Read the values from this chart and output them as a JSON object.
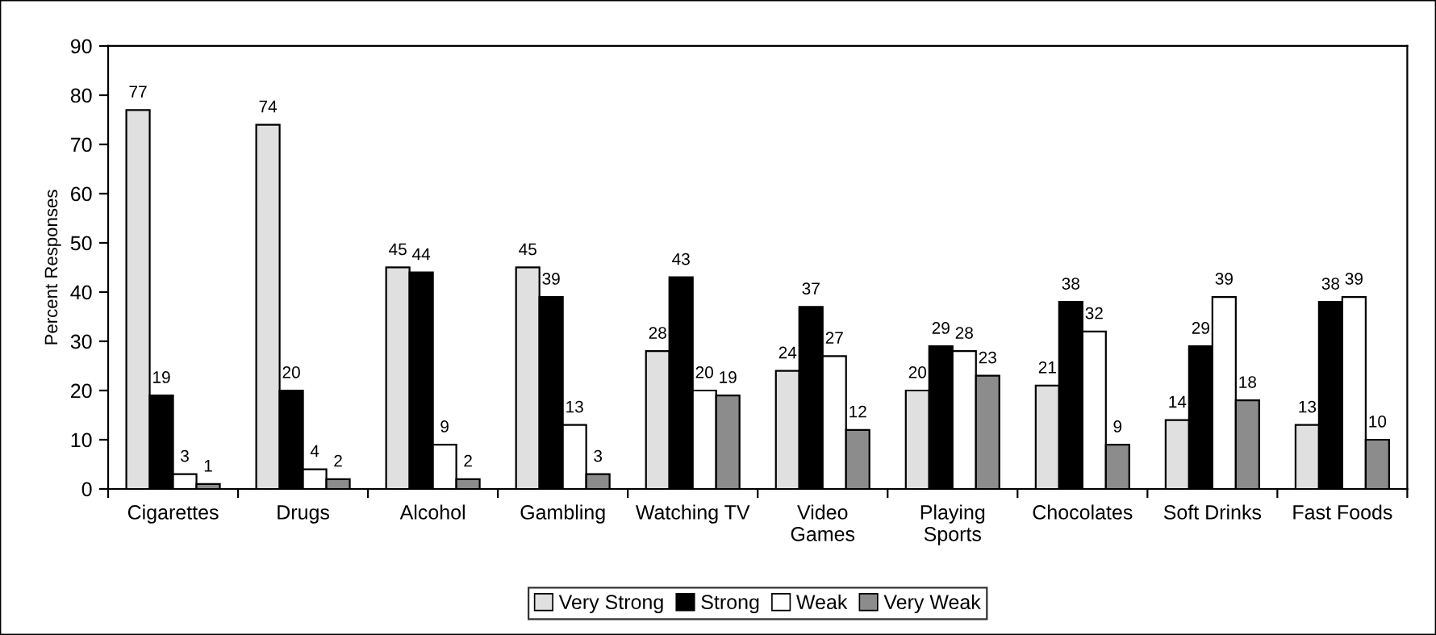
{
  "chart_data": {
    "type": "bar",
    "ylabel": "Percent Responses",
    "categories": [
      "Cigarettes",
      "Drugs",
      "Alcohol",
      "Gambling",
      "Watching TV",
      "Video\nGames",
      "Playing\nSports",
      "Chocolates",
      "Soft Drinks",
      "Fast Foods"
    ],
    "series": [
      {
        "name": "Very Strong",
        "color": "#e0e0e0",
        "values": [
          77,
          74,
          45,
          45,
          28,
          24,
          20,
          21,
          14,
          13
        ]
      },
      {
        "name": "Strong",
        "color": "#000000",
        "values": [
          19,
          20,
          44,
          39,
          43,
          37,
          29,
          38,
          29,
          38
        ]
      },
      {
        "name": "Weak",
        "color": "#ffffff",
        "values": [
          3,
          4,
          9,
          13,
          20,
          27,
          28,
          32,
          39,
          39
        ]
      },
      {
        "name": "Very Weak",
        "color": "#8c8c8c",
        "values": [
          1,
          2,
          2,
          3,
          19,
          12,
          23,
          9,
          18,
          10
        ]
      }
    ],
    "ylim": [
      0,
      90
    ],
    "yticks": [
      0,
      10,
      20,
      30,
      40,
      50,
      60,
      70,
      80,
      90
    ],
    "data_labels": true,
    "grid": false,
    "legend": "bottom"
  }
}
